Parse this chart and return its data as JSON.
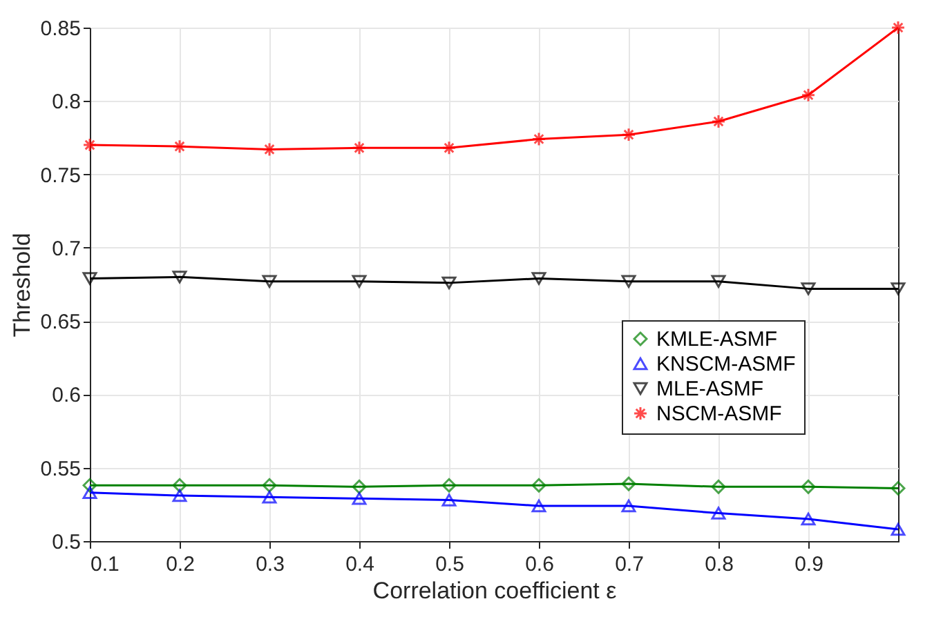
{
  "chart_data": {
    "type": "line",
    "xlabel": "Correlation coefficient ε",
    "ylabel": "Threshold",
    "x": [
      0.1,
      0.2,
      0.3,
      0.4,
      0.5,
      0.6,
      0.7,
      0.8,
      0.9,
      1.0
    ],
    "series": [
      {
        "name": "KMLE-ASMF",
        "color": "#008000",
        "marker": "diamond",
        "values": [
          0.538,
          0.538,
          0.538,
          0.537,
          0.538,
          0.538,
          0.539,
          0.537,
          0.537,
          0.536
        ]
      },
      {
        "name": "KNSCM-ASMF",
        "color": "#0000ff",
        "marker": "triangle",
        "values": [
          0.533,
          0.531,
          0.53,
          0.529,
          0.528,
          0.524,
          0.524,
          0.519,
          0.515,
          0.508
        ]
      },
      {
        "name": "MLE-ASMF",
        "color": "#000000",
        "marker": "triangle-down",
        "values": [
          0.679,
          0.68,
          0.677,
          0.677,
          0.676,
          0.679,
          0.677,
          0.677,
          0.672,
          0.672
        ]
      },
      {
        "name": "NSCM-ASMF",
        "color": "#ff0000",
        "marker": "cross",
        "values": [
          0.77,
          0.769,
          0.767,
          0.768,
          0.768,
          0.774,
          0.777,
          0.786,
          0.804,
          0.85
        ]
      }
    ],
    "xlim": [
      0.1,
      1.0
    ],
    "xticks": [
      0.1,
      0.2,
      0.3,
      0.4,
      0.5,
      0.6,
      0.7,
      0.8,
      0.9
    ],
    "ylim": [
      0.5,
      0.85
    ],
    "yticks": [
      0.5,
      0.55,
      0.6,
      0.65,
      0.7,
      0.75,
      0.8,
      0.85
    ],
    "grid": true,
    "legend": "bottom right",
    "line_style": "solid"
  }
}
